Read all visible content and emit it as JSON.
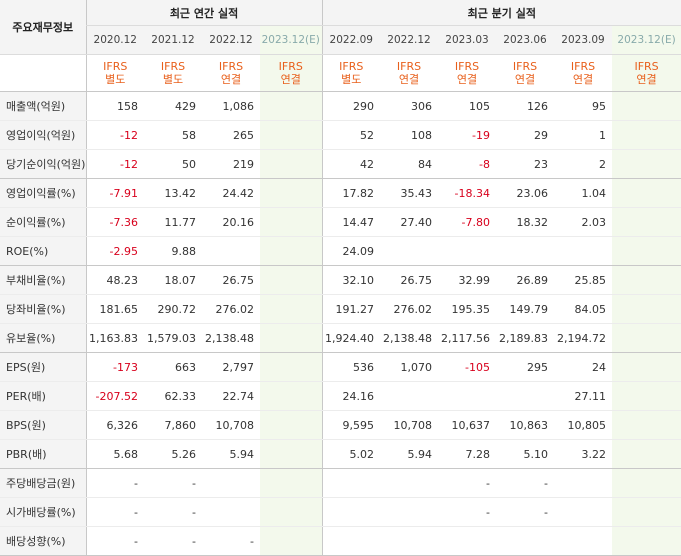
{
  "header": {
    "row_label": "주요재무정보",
    "annual_title": "최근 연간 실적",
    "quarter_title": "최근 분기 실적"
  },
  "annual_periods": [
    {
      "period": "2020.12",
      "std": "IFRS",
      "basis": "별도"
    },
    {
      "period": "2021.12",
      "std": "IFRS",
      "basis": "별도"
    },
    {
      "period": "2022.12",
      "std": "IFRS",
      "basis": "연결"
    },
    {
      "period": "2023.12(E)",
      "std": "IFRS",
      "basis": "연결"
    }
  ],
  "quarter_periods": [
    {
      "period": "2022.09",
      "std": "IFRS",
      "basis": "별도"
    },
    {
      "period": "2022.12",
      "std": "IFRS",
      "basis": "연결"
    },
    {
      "period": "2023.03",
      "std": "IFRS",
      "basis": "연결"
    },
    {
      "period": "2023.06",
      "std": "IFRS",
      "basis": "연결"
    },
    {
      "period": "2023.09",
      "std": "IFRS",
      "basis": "연결"
    },
    {
      "period": "2023.12(E)",
      "std": "IFRS",
      "basis": "연결"
    }
  ],
  "rows": [
    {
      "label": "매출액(억원)",
      "annual": [
        "158",
        "429",
        "1,086",
        ""
      ],
      "quarter": [
        "290",
        "306",
        "105",
        "126",
        "95",
        ""
      ]
    },
    {
      "label": "영업이익(억원)",
      "annual": [
        "-12",
        "58",
        "265",
        ""
      ],
      "quarter": [
        "52",
        "108",
        "-19",
        "29",
        "1",
        ""
      ]
    },
    {
      "label": "당기순이익(억원)",
      "annual": [
        "-12",
        "50",
        "219",
        ""
      ],
      "quarter": [
        "42",
        "84",
        "-8",
        "23",
        "2",
        ""
      ]
    },
    {
      "label": "영업이익률(%)",
      "annual": [
        "-7.91",
        "13.42",
        "24.42",
        ""
      ],
      "quarter": [
        "17.82",
        "35.43",
        "-18.34",
        "23.06",
        "1.04",
        ""
      ]
    },
    {
      "label": "순이익률(%)",
      "annual": [
        "-7.36",
        "11.77",
        "20.16",
        ""
      ],
      "quarter": [
        "14.47",
        "27.40",
        "-7.80",
        "18.32",
        "2.03",
        ""
      ]
    },
    {
      "label": "ROE(%)",
      "annual": [
        "-2.95",
        "9.88",
        "",
        ""
      ],
      "quarter": [
        "24.09",
        "",
        "",
        "",
        "",
        ""
      ]
    },
    {
      "label": "부채비율(%)",
      "annual": [
        "48.23",
        "18.07",
        "26.75",
        ""
      ],
      "quarter": [
        "32.10",
        "26.75",
        "32.99",
        "26.89",
        "25.85",
        ""
      ]
    },
    {
      "label": "당좌비율(%)",
      "annual": [
        "181.65",
        "290.72",
        "276.02",
        ""
      ],
      "quarter": [
        "191.27",
        "276.02",
        "195.35",
        "149.79",
        "84.05",
        ""
      ]
    },
    {
      "label": "유보율(%)",
      "annual": [
        "1,163.83",
        "1,579.03",
        "2,138.48",
        ""
      ],
      "quarter": [
        "1,924.40",
        "2,138.48",
        "2,117.56",
        "2,189.83",
        "2,194.72",
        ""
      ]
    },
    {
      "label": "EPS(원)",
      "annual": [
        "-173",
        "663",
        "2,797",
        ""
      ],
      "quarter": [
        "536",
        "1,070",
        "-105",
        "295",
        "24",
        ""
      ]
    },
    {
      "label": "PER(배)",
      "annual": [
        "-207.52",
        "62.33",
        "22.74",
        ""
      ],
      "quarter": [
        "24.16",
        "",
        "",
        "",
        "27.11",
        ""
      ]
    },
    {
      "label": "BPS(원)",
      "annual": [
        "6,326",
        "7,860",
        "10,708",
        ""
      ],
      "quarter": [
        "9,595",
        "10,708",
        "10,637",
        "10,863",
        "10,805",
        ""
      ]
    },
    {
      "label": "PBR(배)",
      "annual": [
        "5.68",
        "5.26",
        "5.94",
        ""
      ],
      "quarter": [
        "5.02",
        "5.94",
        "7.28",
        "5.10",
        "3.22",
        ""
      ]
    },
    {
      "label": "주당배당금(원)",
      "annual": [
        "-",
        "-",
        "",
        ""
      ],
      "quarter": [
        "",
        "",
        "-",
        "-",
        "",
        ""
      ]
    },
    {
      "label": "시가배당률(%)",
      "annual": [
        "-",
        "-",
        "",
        ""
      ],
      "quarter": [
        "",
        "",
        "-",
        "-",
        "",
        ""
      ]
    },
    {
      "label": "배당성향(%)",
      "annual": [
        "-",
        "-",
        "-",
        ""
      ],
      "quarter": [
        "",
        "",
        "",
        "",
        "",
        ""
      ]
    }
  ],
  "colors": {
    "negative": "#d8001c",
    "ifrs_label": "#e8601c",
    "estimate_bg": "#f3f9ec",
    "header_bg": "#f4f4f4"
  }
}
